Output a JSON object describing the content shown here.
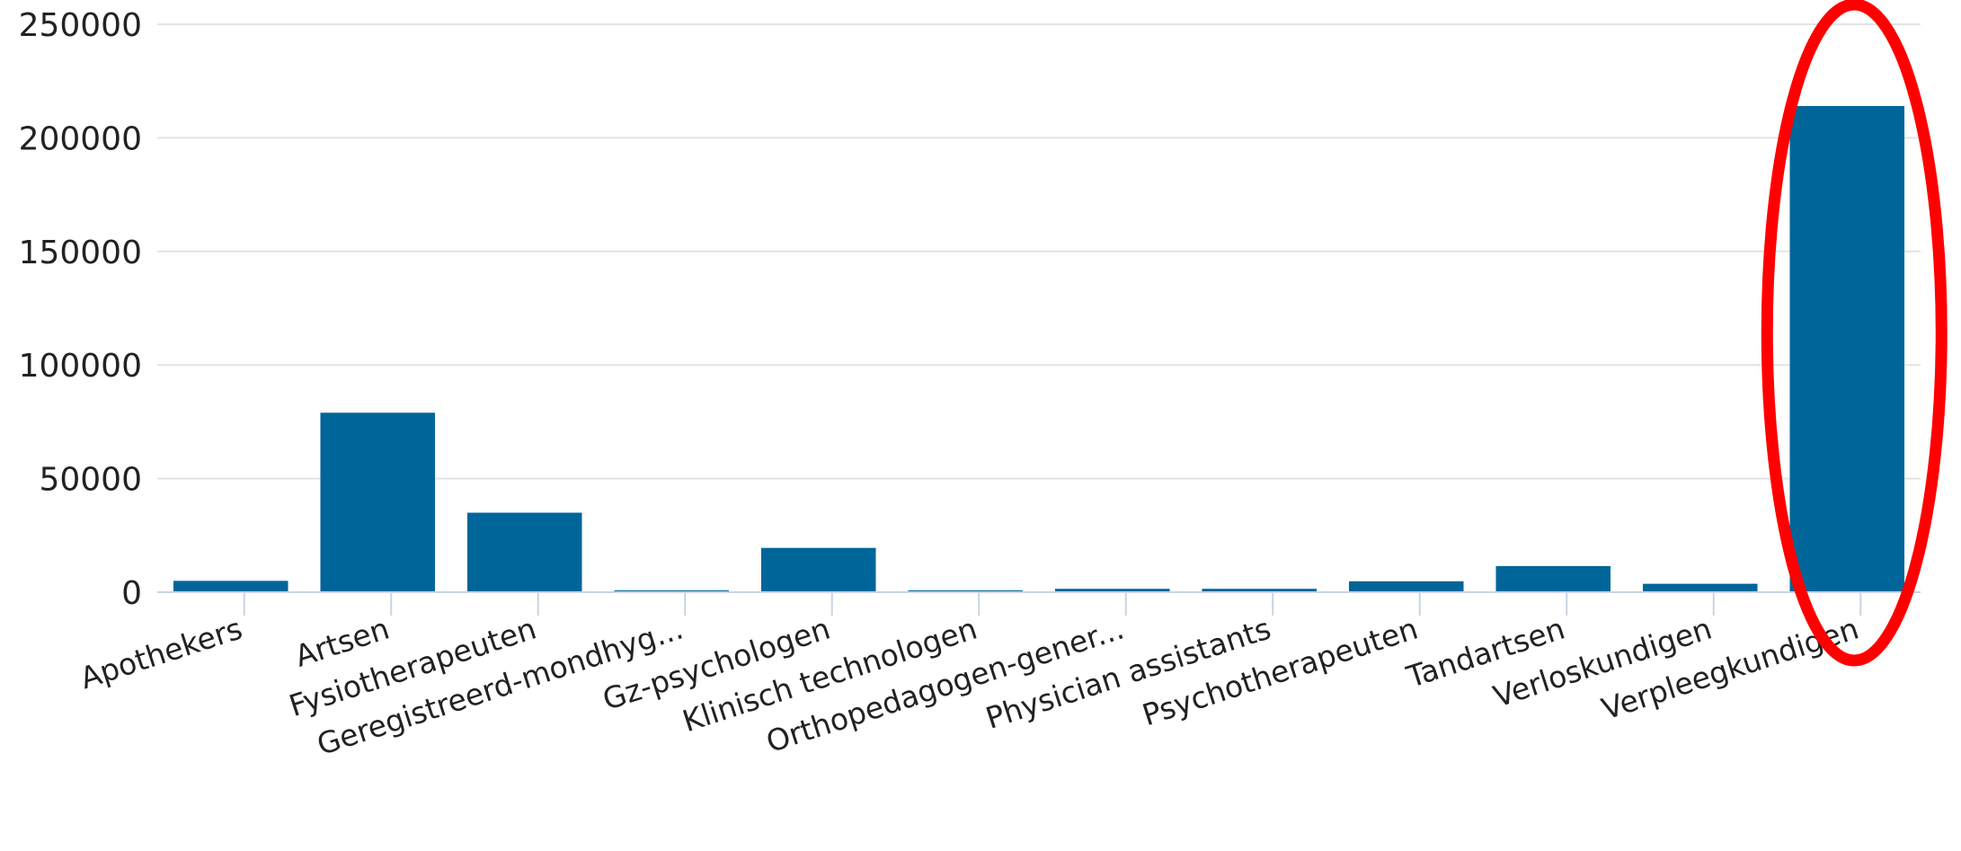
{
  "chart_data": {
    "type": "bar",
    "title": "",
    "xlabel": "",
    "ylabel": "",
    "categories": [
      "Apothekers",
      "Artsen",
      "Fysiotherapeuten",
      "Geregistreerd-mondhyg...",
      "Gz-psychologen",
      "Klinisch technologen",
      "Orthopedagogen-gener...",
      "Physician assistants",
      "Psychotherapeuten",
      "Tandartsen",
      "Verloskundigen",
      "Verpleegkundigen"
    ],
    "values": [
      5000,
      79000,
      35000,
      500,
      19500,
      300,
      1500,
      1500,
      4800,
      11500,
      3700,
      214000
    ],
    "ylim": [
      0,
      250000
    ],
    "yticks": [
      0,
      50000,
      100000,
      150000,
      200000,
      250000
    ],
    "grid": true,
    "bar_color": "#006699",
    "highlight": {
      "category": "Verpleegkundigen",
      "shape": "ellipse",
      "color": "#ff0000"
    }
  }
}
